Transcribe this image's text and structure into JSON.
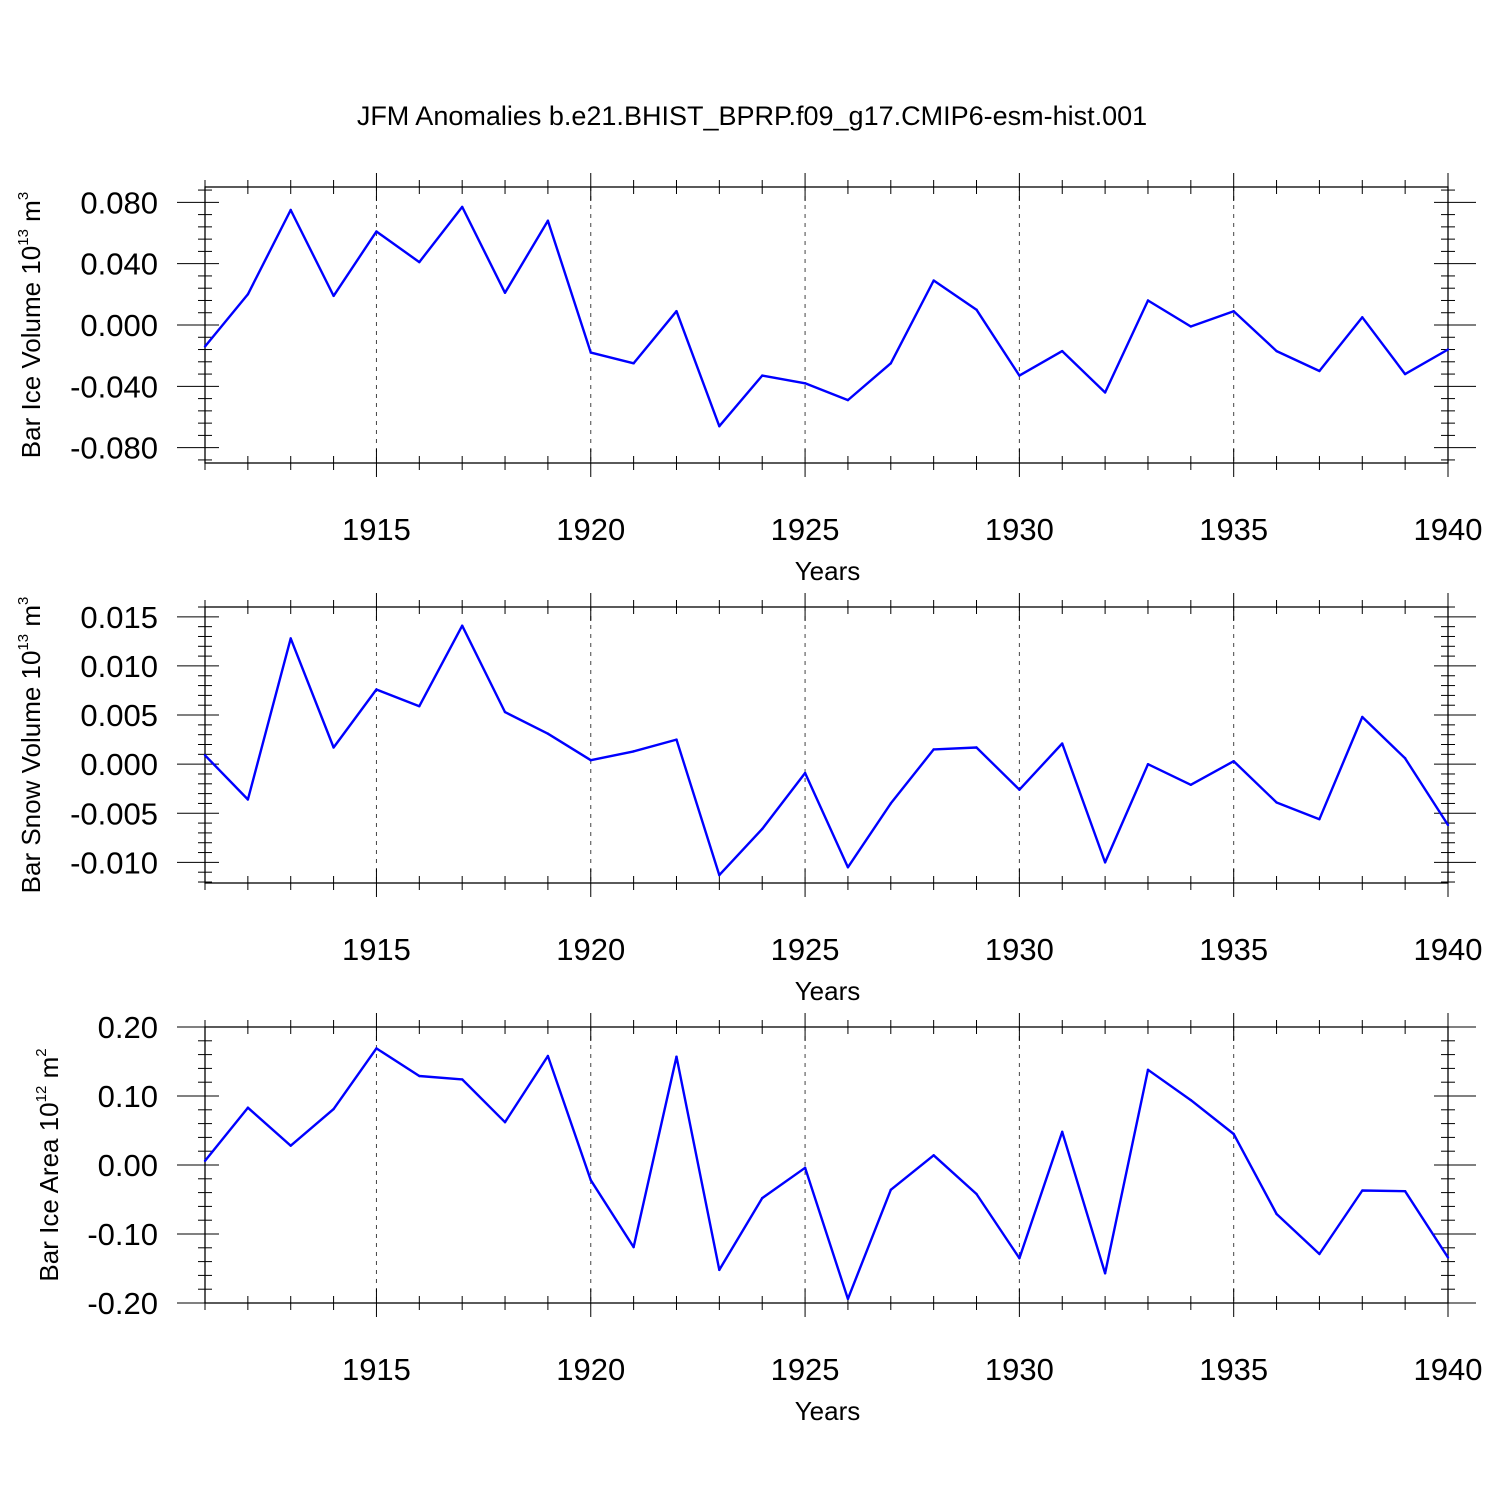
{
  "title": "JFM Anomalies b.e21.BHIST_BPRP.f09_g17.CMIP6-esm-hist.001",
  "colors": {
    "line": "#0000ff",
    "axis": "#000000",
    "grid": "#444444"
  },
  "chart_data": [
    {
      "type": "line",
      "id": "ice-volume",
      "ylabel": {
        "text": "Bar Ice Volume 10",
        "sup": "13",
        "unit": " m",
        "unit_sup": "3"
      },
      "xlabel": "Years",
      "x": [
        1911,
        1912,
        1913,
        1914,
        1915,
        1916,
        1917,
        1918,
        1919,
        1920,
        1921,
        1922,
        1923,
        1924,
        1925,
        1926,
        1927,
        1928,
        1929,
        1930,
        1931,
        1932,
        1933,
        1934,
        1935,
        1936,
        1937,
        1938,
        1939,
        1940
      ],
      "values": [
        -0.014,
        0.02,
        0.075,
        0.019,
        0.061,
        0.041,
        0.077,
        0.021,
        0.068,
        -0.018,
        -0.025,
        0.009,
        -0.066,
        -0.033,
        -0.038,
        -0.049,
        -0.025,
        0.029,
        0.01,
        -0.033,
        -0.017,
        -0.044,
        0.016,
        -0.001,
        0.009,
        -0.017,
        -0.03,
        0.005,
        -0.032,
        -0.016
      ],
      "xlim": [
        1911,
        1940
      ],
      "ylim": [
        -0.09,
        0.09
      ],
      "yticks": [
        -0.08,
        -0.04,
        0.0,
        0.04,
        0.08
      ],
      "ytick_labels": [
        "-0.080",
        "-0.040",
        "0.000",
        "0.040",
        "0.080"
      ],
      "yminor_step": 0.008,
      "xticks": [
        1915,
        1920,
        1925,
        1930,
        1935,
        1940
      ],
      "xtick_labels": [
        "1915",
        "1920",
        "1925",
        "1930",
        "1935",
        "1940"
      ],
      "grid": "dashed vertical at major x ticks"
    },
    {
      "type": "line",
      "id": "snow-volume",
      "ylabel": {
        "text": "Bar Snow Volume 10",
        "sup": "13",
        "unit": " m",
        "unit_sup": "3"
      },
      "xlabel": "Years",
      "x": [
        1911,
        1912,
        1913,
        1914,
        1915,
        1916,
        1917,
        1918,
        1919,
        1920,
        1921,
        1922,
        1923,
        1924,
        1925,
        1926,
        1927,
        1928,
        1929,
        1930,
        1931,
        1932,
        1933,
        1934,
        1935,
        1936,
        1937,
        1938,
        1939,
        1940
      ],
      "values": [
        0.0009,
        -0.0036,
        0.0128,
        0.0017,
        0.0076,
        0.0059,
        0.0141,
        0.0053,
        0.0031,
        0.0004,
        0.0013,
        0.0025,
        -0.0113,
        -0.0066,
        -0.0009,
        -0.0105,
        -0.004,
        0.0015,
        0.0017,
        -0.0026,
        0.0021,
        -0.01,
        0.0,
        -0.0021,
        0.0003,
        -0.0039,
        -0.0056,
        0.0048,
        0.0006,
        -0.0062
      ],
      "xlim": [
        1911,
        1940
      ],
      "ylim": [
        -0.0121,
        0.016
      ],
      "yticks": [
        -0.01,
        -0.005,
        0.0,
        0.005,
        0.01,
        0.015
      ],
      "ytick_labels": [
        "-0.010",
        "-0.005",
        "0.000",
        "0.005",
        "0.010",
        "0.015"
      ],
      "yminor_step": 0.001,
      "xticks": [
        1915,
        1920,
        1925,
        1930,
        1935,
        1940
      ],
      "xtick_labels": [
        "1915",
        "1920",
        "1925",
        "1930",
        "1935",
        "1940"
      ],
      "grid": "dashed vertical at major x ticks"
    },
    {
      "type": "line",
      "id": "ice-area",
      "ylabel": {
        "text": "Bar Ice Area 10",
        "sup": "12",
        "unit": " m",
        "unit_sup": "2"
      },
      "xlabel": "Years",
      "x": [
        1911,
        1912,
        1913,
        1914,
        1915,
        1916,
        1917,
        1918,
        1919,
        1920,
        1921,
        1922,
        1923,
        1924,
        1925,
        1926,
        1927,
        1928,
        1929,
        1930,
        1931,
        1932,
        1933,
        1934,
        1935,
        1936,
        1937,
        1938,
        1939,
        1940
      ],
      "values": [
        0.006,
        0.083,
        0.028,
        0.081,
        0.169,
        0.129,
        0.124,
        0.062,
        0.158,
        -0.022,
        -0.119,
        0.157,
        -0.152,
        -0.048,
        -0.004,
        -0.194,
        -0.036,
        0.014,
        -0.042,
        -0.135,
        0.048,
        -0.157,
        0.138,
        0.094,
        0.045,
        -0.071,
        -0.129,
        -0.037,
        -0.038,
        -0.134
      ],
      "xlim": [
        1911,
        1940
      ],
      "ylim": [
        -0.2,
        0.2
      ],
      "yticks": [
        -0.2,
        -0.1,
        0.0,
        0.1,
        0.2
      ],
      "ytick_labels": [
        "-0.20",
        "-0.10",
        "0.00",
        "0.10",
        "0.20"
      ],
      "yminor_step": 0.02,
      "xticks": [
        1915,
        1920,
        1925,
        1930,
        1935,
        1940
      ],
      "xtick_labels": [
        "1915",
        "1920",
        "1925",
        "1930",
        "1935",
        "1940"
      ],
      "grid": "dashed vertical at major x ticks"
    }
  ]
}
